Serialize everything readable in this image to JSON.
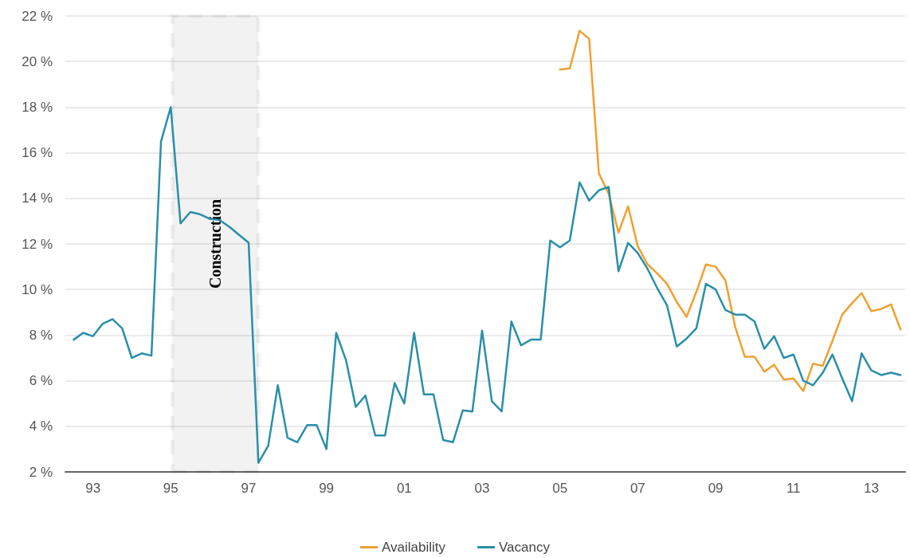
{
  "chart_data": {
    "type": "line",
    "xlim": [
      "1992-10-15",
      "2014-05-15"
    ],
    "xticks": [
      {
        "value": "1993-07",
        "label": "93"
      },
      {
        "value": "1995-07",
        "label": "95"
      },
      {
        "value": "1997-07",
        "label": "97"
      },
      {
        "value": "1999-07",
        "label": "99"
      },
      {
        "value": "2001-07",
        "label": "01"
      },
      {
        "value": "2003-07",
        "label": "03"
      },
      {
        "value": "2005-07",
        "label": "05"
      },
      {
        "value": "2007-07",
        "label": "07"
      },
      {
        "value": "2009-07",
        "label": "09"
      },
      {
        "value": "2011-07",
        "label": "11"
      },
      {
        "value": "2013-07",
        "label": "13"
      }
    ],
    "ylim": [
      2,
      22
    ],
    "yticks": [
      {
        "value": 2,
        "label": "2 %"
      },
      {
        "value": 4,
        "label": "4 %"
      },
      {
        "value": 6,
        "label": "6 %"
      },
      {
        "value": 8,
        "label": "8 %"
      },
      {
        "value": 10,
        "label": "10 %"
      },
      {
        "value": 12,
        "label": "12 %"
      },
      {
        "value": 14,
        "label": "14 %"
      },
      {
        "value": 16,
        "label": "16 %"
      },
      {
        "value": 18,
        "label": "18 %"
      },
      {
        "value": 20,
        "label": "20 %"
      },
      {
        "value": 22,
        "label": "22 %"
      }
    ],
    "grid": "y",
    "legend": "bottom",
    "marker": "none",
    "bands": [
      {
        "axis": "x",
        "from": "1995-07-15",
        "to": "1997-10-01",
        "label": "Construction",
        "color": "#000000"
      }
    ],
    "series": [
      {
        "name": "Availability",
        "color": "#f0a030",
        "x": [
          "2005-07",
          "2005-10",
          "2006-01",
          "2006-04",
          "2006-07",
          "2006-10",
          "2007-01",
          "2007-04",
          "2007-07",
          "2007-10",
          "2008-01",
          "2008-04",
          "2008-07",
          "2008-10",
          "2009-01",
          "2009-04",
          "2009-07",
          "2009-10",
          "2010-01",
          "2010-04",
          "2010-07",
          "2010-10",
          "2011-01",
          "2011-04",
          "2011-07",
          "2011-10",
          "2012-01",
          "2012-04",
          "2012-07",
          "2012-10",
          "2013-01",
          "2013-04",
          "2013-07",
          "2013-10",
          "2014-01",
          "2014-04"
        ],
        "values": [
          19.65,
          19.7,
          21.35,
          21.0,
          15.1,
          14.2,
          12.5,
          13.65,
          11.9,
          11.1,
          10.7,
          10.25,
          9.45,
          8.8,
          9.9,
          11.1,
          11.0,
          10.4,
          8.35,
          7.05,
          7.05,
          6.4,
          6.7,
          6.05,
          6.1,
          5.55,
          6.75,
          6.65,
          7.75,
          8.9,
          9.4,
          9.85,
          9.05,
          9.15,
          9.35,
          8.25
        ]
      },
      {
        "name": "Vacancy",
        "color": "#2a8fa8",
        "x": [
          "1993-01",
          "1993-04",
          "1993-07",
          "1993-10",
          "1994-01",
          "1994-04",
          "1994-07",
          "1994-10",
          "1995-01",
          "1995-04",
          "1995-07",
          "1995-10",
          "1996-01",
          "1996-04",
          "1996-07",
          "1996-10",
          "1997-01",
          "1997-04",
          "1997-07",
          "1997-10",
          "1998-01",
          "1998-04",
          "1998-07",
          "1998-10",
          "1999-01",
          "1999-04",
          "1999-07",
          "1999-10",
          "2000-01",
          "2000-04",
          "2000-07",
          "2000-10",
          "2001-01",
          "2001-04",
          "2001-07",
          "2001-10",
          "2002-01",
          "2002-04",
          "2002-07",
          "2002-10",
          "2003-01",
          "2003-04",
          "2003-07",
          "2003-10",
          "2004-01",
          "2004-04",
          "2004-07",
          "2004-10",
          "2005-01",
          "2005-04",
          "2005-07",
          "2005-10",
          "2006-01",
          "2006-04",
          "2006-07",
          "2006-10",
          "2007-01",
          "2007-04",
          "2007-07",
          "2007-10",
          "2008-01",
          "2008-04",
          "2008-07",
          "2008-10",
          "2009-01",
          "2009-04",
          "2009-07",
          "2009-10",
          "2010-01",
          "2010-04",
          "2010-07",
          "2010-10",
          "2011-01",
          "2011-04",
          "2011-07",
          "2011-10",
          "2012-01",
          "2012-04",
          "2012-07",
          "2012-10",
          "2013-01",
          "2013-04",
          "2013-07",
          "2013-10",
          "2014-01",
          "2014-04"
        ],
        "values": [
          7.8,
          8.1,
          7.95,
          8.5,
          8.7,
          8.3,
          7.0,
          7.2,
          7.1,
          16.5,
          18.0,
          12.9,
          13.4,
          13.3,
          13.1,
          13.05,
          12.75,
          12.4,
          12.05,
          2.4,
          3.15,
          5.8,
          3.5,
          3.3,
          4.05,
          4.05,
          3.0,
          8.1,
          6.9,
          4.85,
          5.35,
          3.6,
          3.6,
          5.9,
          5.0,
          8.1,
          5.4,
          5.4,
          3.4,
          3.3,
          4.7,
          4.65,
          8.2,
          5.1,
          4.65,
          8.6,
          7.55,
          7.8,
          7.8,
          12.15,
          11.85,
          12.15,
          14.7,
          13.9,
          14.35,
          14.5,
          10.8,
          12.05,
          11.6,
          10.9,
          10.05,
          9.3,
          7.5,
          7.85,
          8.3,
          10.25,
          10.0,
          9.1,
          8.9,
          8.9,
          8.6,
          7.4,
          7.95,
          7.0,
          7.15,
          6.0,
          5.8,
          6.35,
          7.15,
          6.1,
          5.1,
          7.2,
          6.45,
          6.25,
          6.35,
          6.25
        ]
      }
    ]
  }
}
